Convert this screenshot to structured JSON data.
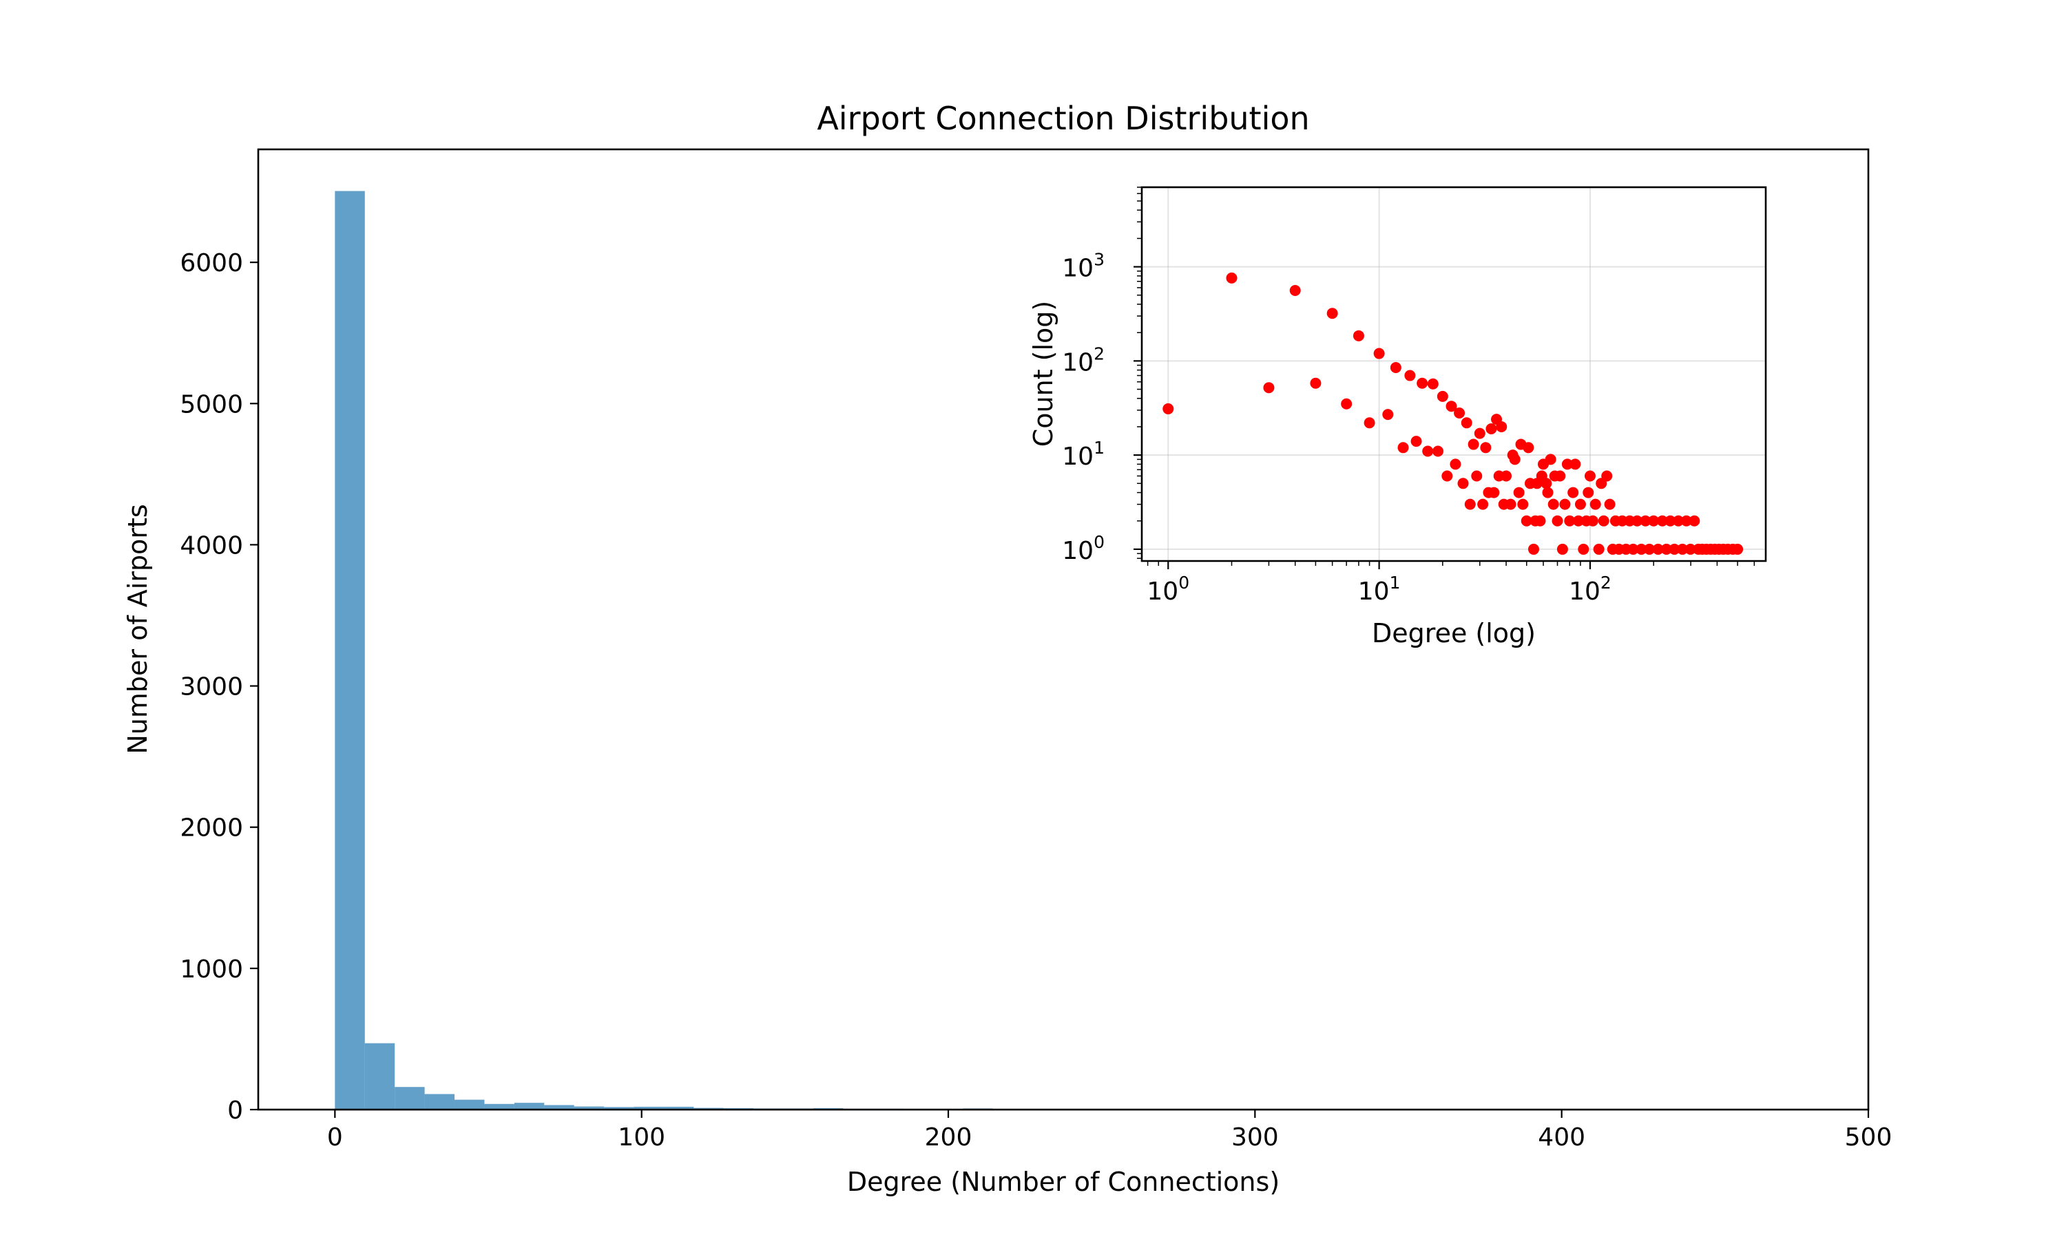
{
  "chart_data": [
    {
      "type": "bar",
      "title": "Airport Connection Distribution",
      "xlabel": "Degree (Number of Connections)",
      "ylabel": "Number of Airports",
      "xlim": [
        -25,
        500
      ],
      "ylim": [
        0,
        6800
      ],
      "xticks": [
        0,
        100,
        200,
        300,
        400,
        500
      ],
      "yticks": [
        0,
        1000,
        2000,
        3000,
        4000,
        5000,
        6000
      ],
      "grid": false,
      "bar_color": "#1f77b4",
      "bin_edges": [
        0,
        9.75,
        19.5,
        29.25,
        39,
        48.75,
        58.5,
        68.25,
        78,
        87.75,
        97.5,
        107.25,
        117,
        126.75,
        136.5,
        146.25,
        156,
        165.75,
        175.5,
        185.25,
        195,
        204.75,
        214.5,
        224.25,
        234,
        243.75,
        253.5,
        263.25,
        273,
        282.75,
        292.5,
        302.25,
        312,
        321.75,
        331.5,
        341.25,
        351,
        360.75,
        370.5,
        380.25,
        390,
        399.75,
        409.5,
        419.25,
        429,
        438.75,
        448.5,
        458.25,
        468,
        477.75,
        487.5
      ],
      "values": [
        6505,
        470,
        160,
        110,
        70,
        40,
        48,
        32,
        22,
        18,
        20,
        20,
        12,
        10,
        8,
        8,
        10,
        6,
        6,
        4,
        4,
        8,
        3,
        3,
        2,
        2,
        2,
        1,
        1,
        1,
        3,
        1,
        1,
        0,
        0,
        0,
        0,
        0,
        0,
        0,
        0,
        0,
        0,
        0,
        0,
        0,
        0,
        0,
        0,
        0
      ]
    },
    {
      "type": "scatter",
      "inset": true,
      "xlabel": "Degree (log)",
      "ylabel": "Count (log)",
      "xscale": "log",
      "yscale": "log",
      "xlim": [
        0.75,
        680
      ],
      "ylim": [
        0.75,
        7000
      ],
      "xtick_labels": [
        {
          "base": "10",
          "exp": "0"
        },
        {
          "base": "10",
          "exp": "1"
        },
        {
          "base": "10",
          "exp": "2"
        }
      ],
      "ytick_labels": [
        {
          "base": "10",
          "exp": "0"
        },
        {
          "base": "10",
          "exp": "1"
        },
        {
          "base": "10",
          "exp": "2"
        },
        {
          "base": "10",
          "exp": "3"
        }
      ],
      "grid": true,
      "marker_color": "#ff0000",
      "points": [
        [
          1,
          31
        ],
        [
          2,
          760
        ],
        [
          3,
          52
        ],
        [
          4,
          560
        ],
        [
          5,
          58
        ],
        [
          6,
          320
        ],
        [
          7,
          35
        ],
        [
          8,
          185
        ],
        [
          9,
          22
        ],
        [
          10,
          120
        ],
        [
          11,
          27
        ],
        [
          12,
          85
        ],
        [
          13,
          12
        ],
        [
          14,
          70
        ],
        [
          15,
          14
        ],
        [
          16,
          58
        ],
        [
          17,
          11
        ],
        [
          18,
          57
        ],
        [
          19,
          11
        ],
        [
          20,
          42
        ],
        [
          21,
          6
        ],
        [
          22,
          33
        ],
        [
          23,
          8
        ],
        [
          24,
          28
        ],
        [
          25,
          5
        ],
        [
          26,
          22
        ],
        [
          27,
          3
        ],
        [
          28,
          13
        ],
        [
          29,
          6
        ],
        [
          30,
          17
        ],
        [
          31,
          3
        ],
        [
          32,
          12
        ],
        [
          33,
          4
        ],
        [
          34,
          19
        ],
        [
          35,
          4
        ],
        [
          36,
          24
        ],
        [
          37,
          6
        ],
        [
          38,
          20
        ],
        [
          39,
          3
        ],
        [
          40,
          6
        ],
        [
          42,
          3
        ],
        [
          43,
          10
        ],
        [
          44,
          9
        ],
        [
          46,
          4
        ],
        [
          47,
          13
        ],
        [
          48,
          3
        ],
        [
          50,
          2
        ],
        [
          51,
          12
        ],
        [
          52,
          5
        ],
        [
          54,
          1
        ],
        [
          55,
          2
        ],
        [
          56,
          5
        ],
        [
          58,
          2
        ],
        [
          59,
          6
        ],
        [
          60,
          8
        ],
        [
          62,
          5
        ],
        [
          63,
          4
        ],
        [
          65,
          9
        ],
        [
          67,
          3
        ],
        [
          68,
          6
        ],
        [
          70,
          2
        ],
        [
          72,
          6
        ],
        [
          74,
          1
        ],
        [
          76,
          3
        ],
        [
          78,
          8
        ],
        [
          80,
          2
        ],
        [
          83,
          4
        ],
        [
          85,
          8
        ],
        [
          88,
          2
        ],
        [
          90,
          3
        ],
        [
          93,
          1
        ],
        [
          96,
          2
        ],
        [
          98,
          4
        ],
        [
          100,
          6
        ],
        [
          103,
          2
        ],
        [
          106,
          3
        ],
        [
          110,
          1
        ],
        [
          113,
          5
        ],
        [
          116,
          2
        ],
        [
          120,
          6
        ],
        [
          124,
          3
        ],
        [
          128,
          1
        ],
        [
          132,
          2
        ],
        [
          137,
          1
        ],
        [
          142,
          2
        ],
        [
          148,
          1
        ],
        [
          154,
          2
        ],
        [
          160,
          1
        ],
        [
          167,
          2
        ],
        [
          175,
          1
        ],
        [
          183,
          2
        ],
        [
          191,
          1
        ],
        [
          200,
          2
        ],
        [
          210,
          1
        ],
        [
          220,
          2
        ],
        [
          230,
          1
        ],
        [
          240,
          2
        ],
        [
          251,
          1
        ],
        [
          262,
          2
        ],
        [
          274,
          1
        ],
        [
          286,
          2
        ],
        [
          299,
          1
        ],
        [
          312,
          2
        ],
        [
          326,
          1
        ],
        [
          340,
          1
        ],
        [
          356,
          1
        ],
        [
          373,
          1
        ],
        [
          390,
          1
        ],
        [
          408,
          1
        ],
        [
          428,
          1
        ],
        [
          450,
          1
        ],
        [
          475,
          1
        ],
        [
          500,
          1
        ]
      ]
    }
  ]
}
